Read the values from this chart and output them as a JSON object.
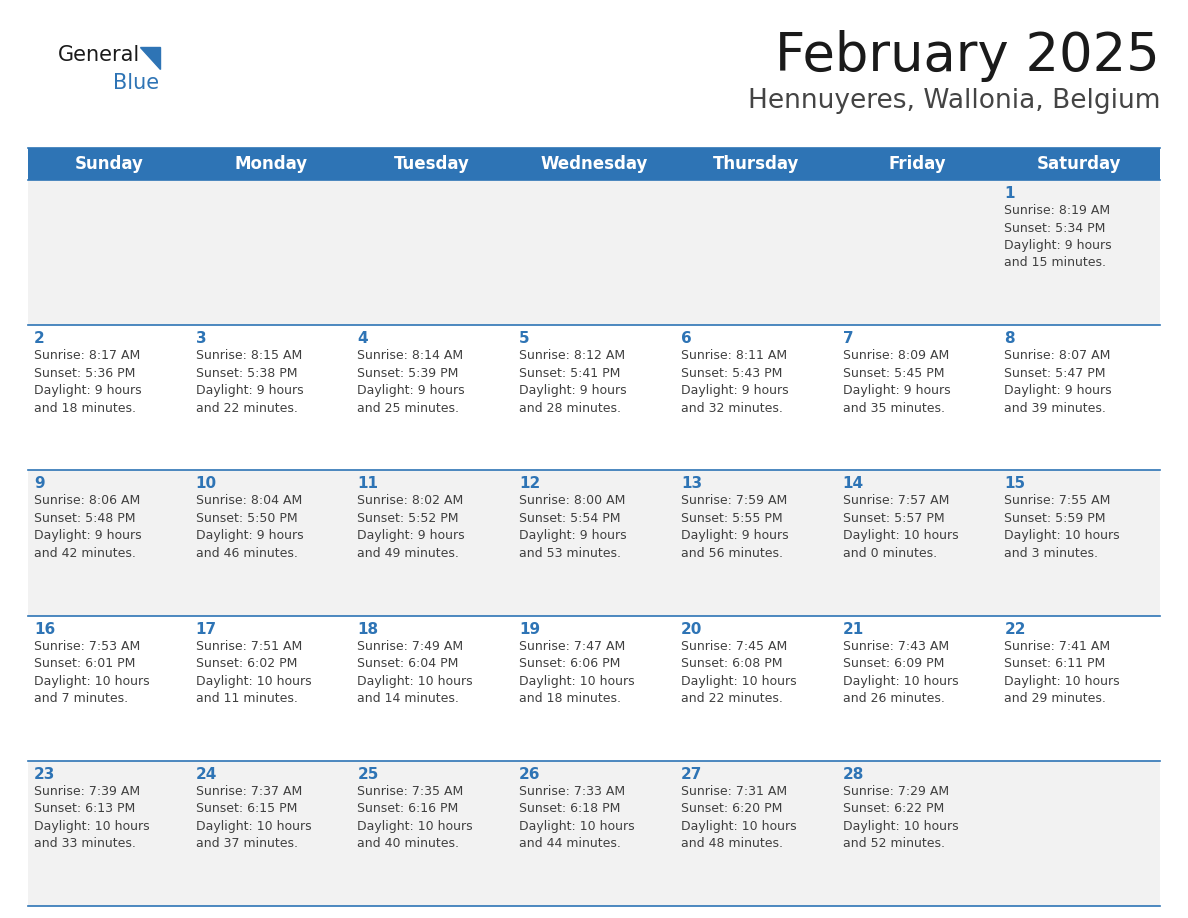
{
  "title": "February 2025",
  "subtitle": "Hennuyeres, Wallonia, Belgium",
  "header_color": "#2E74B5",
  "header_text_color": "#FFFFFF",
  "cell_bg_color": "#F2F2F2",
  "cell_alt_bg_color": "#FFFFFF",
  "day_headers": [
    "Sunday",
    "Monday",
    "Tuesday",
    "Wednesday",
    "Thursday",
    "Friday",
    "Saturday"
  ],
  "line_color": "#2E74B5",
  "day_number_color": "#2E74B5",
  "text_color": "#404040",
  "background_color": "#FFFFFF",
  "weeks": [
    [
      {
        "day": null,
        "info": null
      },
      {
        "day": null,
        "info": null
      },
      {
        "day": null,
        "info": null
      },
      {
        "day": null,
        "info": null
      },
      {
        "day": null,
        "info": null
      },
      {
        "day": null,
        "info": null
      },
      {
        "day": "1",
        "info": "Sunrise: 8:19 AM\nSunset: 5:34 PM\nDaylight: 9 hours\nand 15 minutes."
      }
    ],
    [
      {
        "day": "2",
        "info": "Sunrise: 8:17 AM\nSunset: 5:36 PM\nDaylight: 9 hours\nand 18 minutes."
      },
      {
        "day": "3",
        "info": "Sunrise: 8:15 AM\nSunset: 5:38 PM\nDaylight: 9 hours\nand 22 minutes."
      },
      {
        "day": "4",
        "info": "Sunrise: 8:14 AM\nSunset: 5:39 PM\nDaylight: 9 hours\nand 25 minutes."
      },
      {
        "day": "5",
        "info": "Sunrise: 8:12 AM\nSunset: 5:41 PM\nDaylight: 9 hours\nand 28 minutes."
      },
      {
        "day": "6",
        "info": "Sunrise: 8:11 AM\nSunset: 5:43 PM\nDaylight: 9 hours\nand 32 minutes."
      },
      {
        "day": "7",
        "info": "Sunrise: 8:09 AM\nSunset: 5:45 PM\nDaylight: 9 hours\nand 35 minutes."
      },
      {
        "day": "8",
        "info": "Sunrise: 8:07 AM\nSunset: 5:47 PM\nDaylight: 9 hours\nand 39 minutes."
      }
    ],
    [
      {
        "day": "9",
        "info": "Sunrise: 8:06 AM\nSunset: 5:48 PM\nDaylight: 9 hours\nand 42 minutes."
      },
      {
        "day": "10",
        "info": "Sunrise: 8:04 AM\nSunset: 5:50 PM\nDaylight: 9 hours\nand 46 minutes."
      },
      {
        "day": "11",
        "info": "Sunrise: 8:02 AM\nSunset: 5:52 PM\nDaylight: 9 hours\nand 49 minutes."
      },
      {
        "day": "12",
        "info": "Sunrise: 8:00 AM\nSunset: 5:54 PM\nDaylight: 9 hours\nand 53 minutes."
      },
      {
        "day": "13",
        "info": "Sunrise: 7:59 AM\nSunset: 5:55 PM\nDaylight: 9 hours\nand 56 minutes."
      },
      {
        "day": "14",
        "info": "Sunrise: 7:57 AM\nSunset: 5:57 PM\nDaylight: 10 hours\nand 0 minutes."
      },
      {
        "day": "15",
        "info": "Sunrise: 7:55 AM\nSunset: 5:59 PM\nDaylight: 10 hours\nand 3 minutes."
      }
    ],
    [
      {
        "day": "16",
        "info": "Sunrise: 7:53 AM\nSunset: 6:01 PM\nDaylight: 10 hours\nand 7 minutes."
      },
      {
        "day": "17",
        "info": "Sunrise: 7:51 AM\nSunset: 6:02 PM\nDaylight: 10 hours\nand 11 minutes."
      },
      {
        "day": "18",
        "info": "Sunrise: 7:49 AM\nSunset: 6:04 PM\nDaylight: 10 hours\nand 14 minutes."
      },
      {
        "day": "19",
        "info": "Sunrise: 7:47 AM\nSunset: 6:06 PM\nDaylight: 10 hours\nand 18 minutes."
      },
      {
        "day": "20",
        "info": "Sunrise: 7:45 AM\nSunset: 6:08 PM\nDaylight: 10 hours\nand 22 minutes."
      },
      {
        "day": "21",
        "info": "Sunrise: 7:43 AM\nSunset: 6:09 PM\nDaylight: 10 hours\nand 26 minutes."
      },
      {
        "day": "22",
        "info": "Sunrise: 7:41 AM\nSunset: 6:11 PM\nDaylight: 10 hours\nand 29 minutes."
      }
    ],
    [
      {
        "day": "23",
        "info": "Sunrise: 7:39 AM\nSunset: 6:13 PM\nDaylight: 10 hours\nand 33 minutes."
      },
      {
        "day": "24",
        "info": "Sunrise: 7:37 AM\nSunset: 6:15 PM\nDaylight: 10 hours\nand 37 minutes."
      },
      {
        "day": "25",
        "info": "Sunrise: 7:35 AM\nSunset: 6:16 PM\nDaylight: 10 hours\nand 40 minutes."
      },
      {
        "day": "26",
        "info": "Sunrise: 7:33 AM\nSunset: 6:18 PM\nDaylight: 10 hours\nand 44 minutes."
      },
      {
        "day": "27",
        "info": "Sunrise: 7:31 AM\nSunset: 6:20 PM\nDaylight: 10 hours\nand 48 minutes."
      },
      {
        "day": "28",
        "info": "Sunrise: 7:29 AM\nSunset: 6:22 PM\nDaylight: 10 hours\nand 52 minutes."
      },
      {
        "day": null,
        "info": null
      }
    ]
  ],
  "title_fontsize": 38,
  "subtitle_fontsize": 19,
  "header_fontsize": 12,
  "day_num_fontsize": 11,
  "info_fontsize": 9,
  "logo_general_fontsize": 15,
  "logo_blue_fontsize": 15
}
